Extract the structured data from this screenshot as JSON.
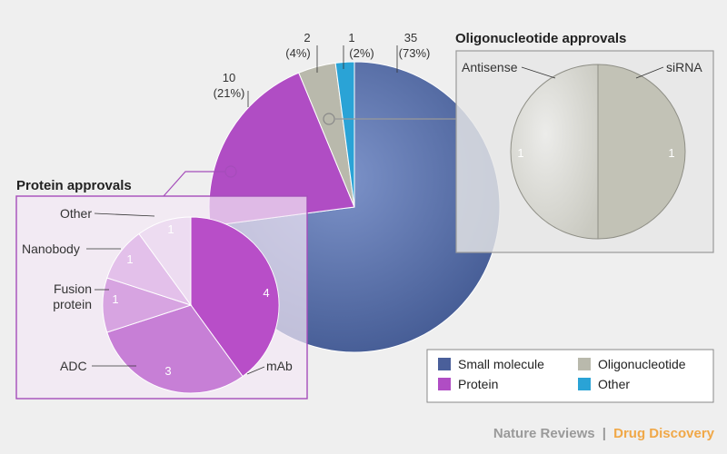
{
  "chart_data": [
    {
      "type": "pie",
      "title": "",
      "slices": [
        {
          "label": "Small molecule",
          "value": 35,
          "count_label": "35",
          "percent_label": "(73%)",
          "color": "#4a5f9a"
        },
        {
          "label": "Protein",
          "value": 10,
          "count_label": "10",
          "percent_label": "(21%)",
          "color": "#b04dc4"
        },
        {
          "label": "Oligonucleotide",
          "value": 2,
          "count_label": "2",
          "percent_label": "(4%)",
          "color": "#b9b9ac"
        },
        {
          "label": "Other",
          "value": 1,
          "count_label": "1",
          "percent_label": "(2%)",
          "color": "#2aa3d6"
        }
      ],
      "legend": {
        "placement": "bottom-right",
        "items": [
          {
            "label": "Small molecule",
            "color": "#4a5f9a"
          },
          {
            "label": "Oligonucleotide",
            "color": "#b9b9ac"
          },
          {
            "label": "Protein",
            "color": "#b04dc4"
          },
          {
            "label": "Other",
            "color": "#2aa3d6"
          }
        ]
      }
    },
    {
      "type": "pie",
      "title": "Protein approvals",
      "slices": [
        {
          "label": "mAb",
          "value": 4,
          "value_label": "4"
        },
        {
          "label": "ADC",
          "value": 3,
          "value_label": "3"
        },
        {
          "label": "Fusion protein",
          "value": 1,
          "value_label": "1"
        },
        {
          "label": "Nanobody",
          "value": 1,
          "value_label": "1"
        },
        {
          "label": "Other",
          "value": 1,
          "value_label": "1"
        }
      ]
    },
    {
      "type": "pie",
      "title": "Oligonucleotide approvals",
      "slices": [
        {
          "label": "siRNA",
          "value": 1,
          "value_label": "1"
        },
        {
          "label": "Antisense",
          "value": 1,
          "value_label": "1"
        }
      ]
    }
  ],
  "credit": {
    "publisher": "Nature Reviews",
    "separator": "|",
    "journal": "Drug Discovery",
    "journal_color": "#f0a848"
  }
}
